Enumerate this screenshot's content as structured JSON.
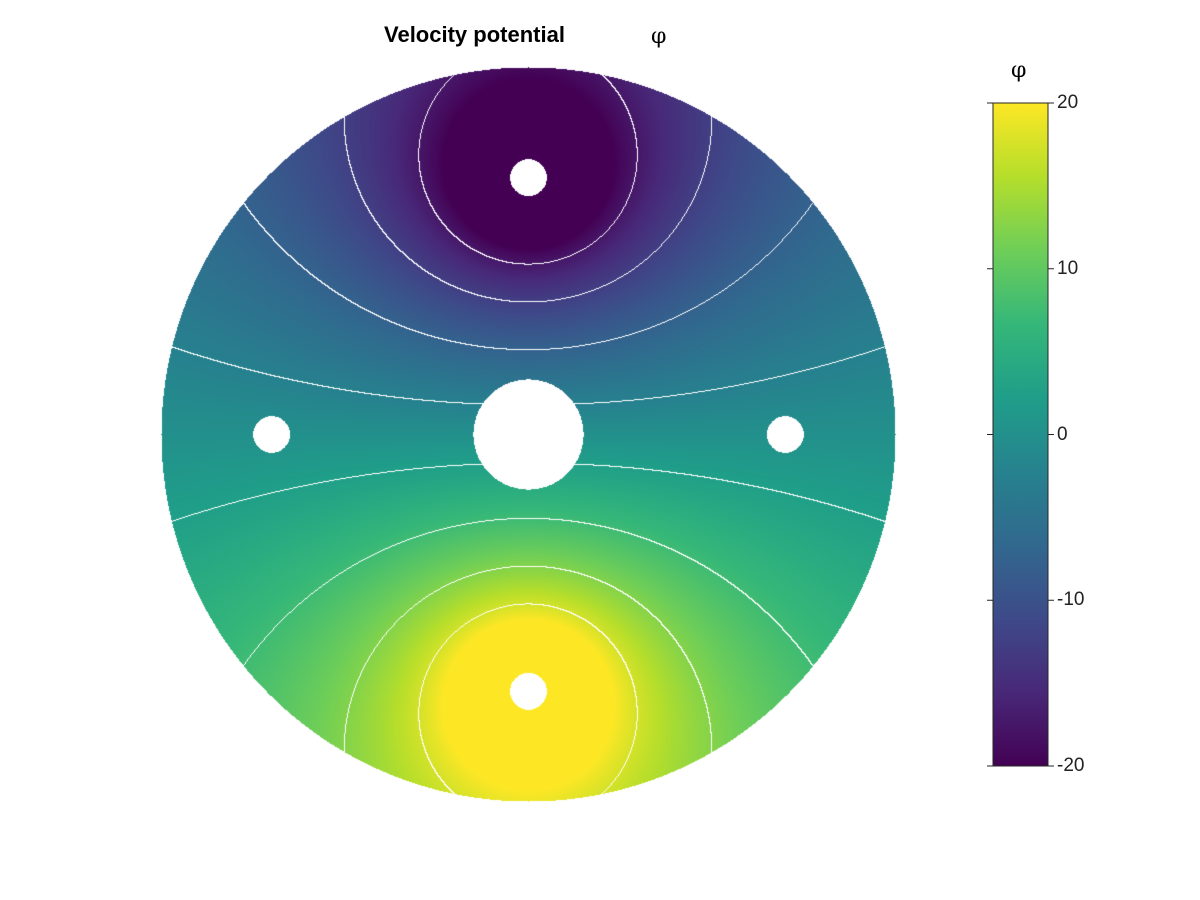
{
  "chart_data": {
    "type": "heatmap",
    "title": "Velocity potential",
    "title_symbol": "φ",
    "colorbar": {
      "label": "φ",
      "range": [
        -20,
        20
      ],
      "ticks": [
        {
          "value": 20,
          "label": "20"
        },
        {
          "value": 10,
          "label": "10"
        },
        {
          "value": 0,
          "label": "0"
        },
        {
          "value": -10,
          "label": "-10"
        },
        {
          "value": -20,
          "label": "-20"
        }
      ],
      "colormap": [
        "#440154",
        "#482878",
        "#3e4a89",
        "#31688e",
        "#26828e",
        "#1f9e89",
        "#35b779",
        "#6ece58",
        "#b5de2b",
        "#fde725"
      ]
    },
    "domain": {
      "shape": "annulus",
      "outer_radius": 1.0,
      "inner_radius": 0.15,
      "holes": [
        {
          "name": "top",
          "cx": 0.0,
          "cy": 0.7,
          "r": 0.05
        },
        {
          "name": "bottom",
          "cx": 0.0,
          "cy": -0.7,
          "r": 0.05
        },
        {
          "name": "left",
          "cx": -0.7,
          "cy": 0.0,
          "r": 0.05
        },
        {
          "name": "right",
          "cx": 0.7,
          "cy": 0.0,
          "r": 0.05
        }
      ]
    },
    "field": {
      "description_model": "phi = -C*y/r^2 with sink at top, source at bottom",
      "peak_at": "bottom hole",
      "trough_at": "top hole"
    },
    "contour_color": "#ffffff",
    "grid": false
  }
}
